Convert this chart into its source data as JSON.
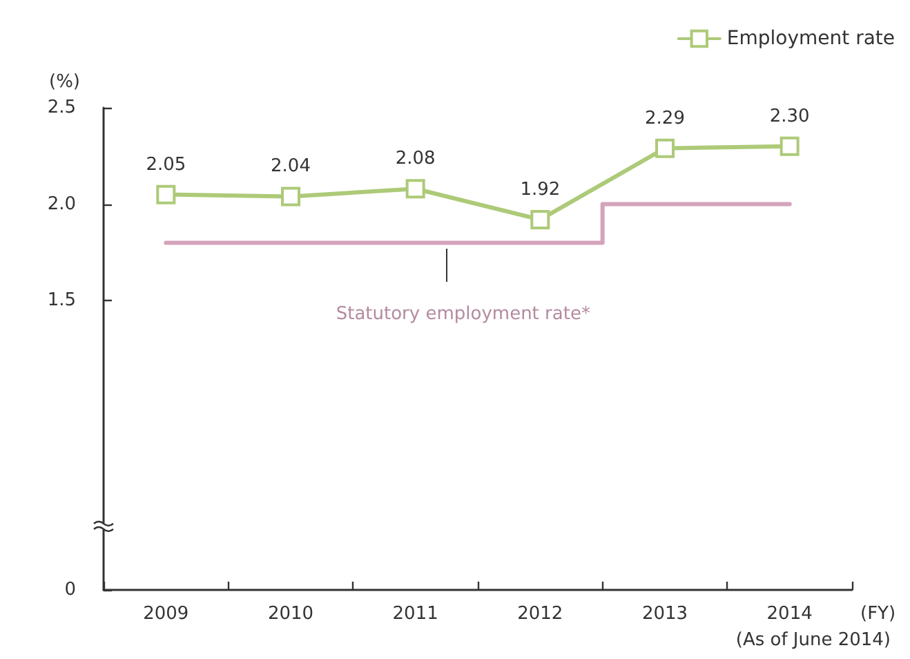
{
  "chart_data": {
    "type": "line",
    "ylabel": "(%)",
    "xlabel": "(FY)",
    "annotations": [
      "(As of June 2014)"
    ],
    "categories": [
      "2009",
      "2010",
      "2011",
      "2012",
      "2013",
      "2014"
    ],
    "series": [
      {
        "name": "Employment rate",
        "color": "#adca78",
        "marker": "square",
        "values": [
          2.05,
          2.04,
          2.08,
          1.92,
          2.29,
          2.3
        ],
        "value_labels": [
          "2.05",
          "2.04",
          "2.08",
          "1.92",
          "2.29",
          "2.30"
        ]
      },
      {
        "name": "Statutory employment rate*",
        "type": "step",
        "color": "#d4a3bb",
        "marker": "none",
        "values": [
          1.8,
          1.8,
          1.8,
          1.8,
          2.0,
          2.0
        ]
      }
    ],
    "ylim": [
      0,
      2.5
    ],
    "yticks": [
      0,
      1.5,
      {
        "value": 2,
        "label": "2.0"
      },
      2.5
    ],
    "grid": false,
    "legend": "top right",
    "line_style": "solid"
  }
}
